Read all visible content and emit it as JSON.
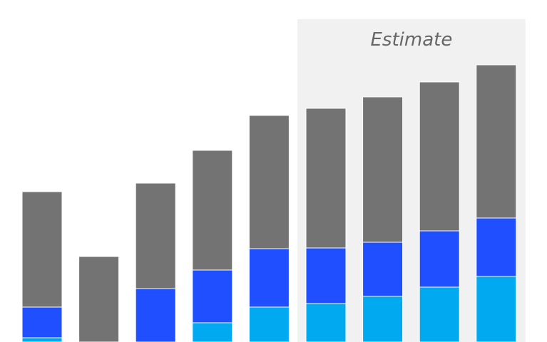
{
  "chart_data": {
    "type": "stacked_bar",
    "categories": [
      null,
      null,
      null,
      null,
      null,
      null,
      null,
      null,
      null
    ],
    "series": [
      {
        "color": "#00a9f0",
        "values": [
          6,
          0,
          0,
          27,
          49,
          54,
          64,
          77,
          92
        ]
      },
      {
        "color": "#1f4fff",
        "values": [
          43,
          0,
          75,
          74,
          82,
          78,
          76,
          79,
          82
        ]
      },
      {
        "color": "#737373",
        "values": [
          162,
          120,
          148,
          168,
          187,
          196,
          204,
          209,
          215
        ]
      }
    ],
    "ylim": [
      0,
      480
    ],
    "shaded_region": {
      "label": "Estimate",
      "from": 5,
      "to": 8,
      "color": "#f1f1f1"
    }
  }
}
